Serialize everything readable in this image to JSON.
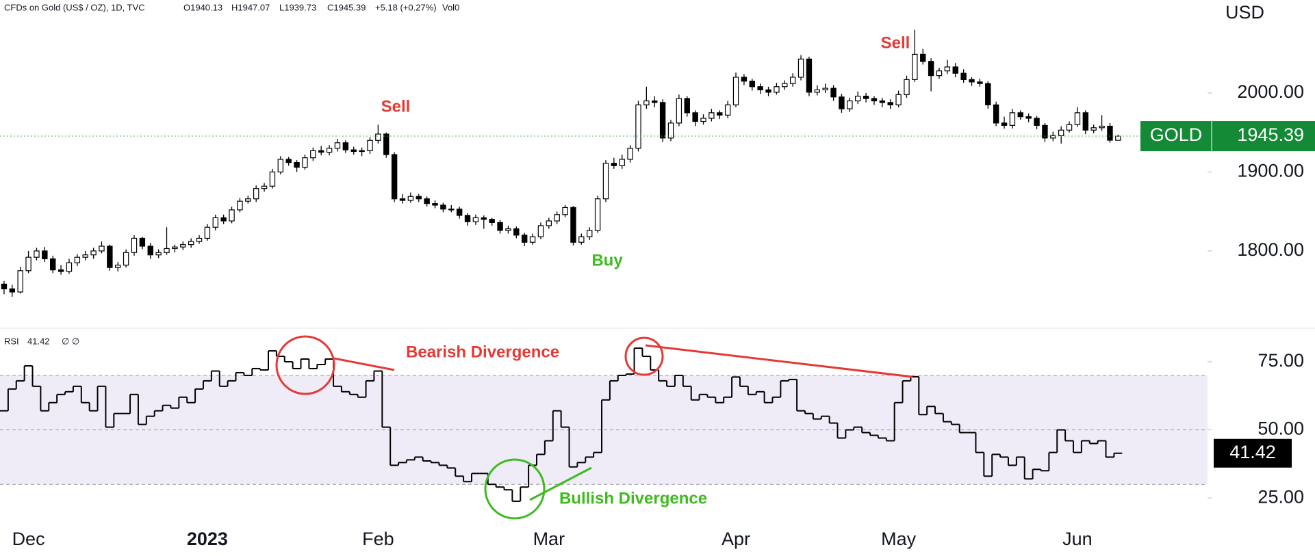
{
  "chart_data": [
    {
      "type": "candlestick",
      "header": {
        "title": "CFDs on Gold (US$ / OZ), 1D, TVC",
        "open": "O1940.13",
        "high": "H1947.07",
        "low": "L1939.73",
        "close": "C1945.39",
        "change": "+5.18 (+0.27%)",
        "volume": "Vol0"
      },
      "unit": "USD",
      "symbol": "GOLD",
      "last_label": "1945.39",
      "up_color": "#ffffff",
      "down_color": "#000000",
      "outline_color": "#000000",
      "last_line_color": "#4caf50",
      "last_box_color": "#148a36",
      "xlim": [
        -0.5,
        148
      ],
      "ylim": [
        1709,
        2097
      ],
      "yticks": [
        {
          "value": 1800,
          "label": "1800.00"
        },
        {
          "value": 1900,
          "label": "1900.00"
        },
        {
          "value": 2000,
          "label": "2000.00"
        }
      ],
      "xticks": [
        {
          "value": 3,
          "label": "Dec"
        },
        {
          "value": 25,
          "label": "2023"
        },
        {
          "value": 46,
          "label": "Feb"
        },
        {
          "value": 67,
          "label": "Mar"
        },
        {
          "value": 90,
          "label": "Apr"
        },
        {
          "value": 110,
          "label": "May"
        },
        {
          "value": 132,
          "label": "Jun"
        }
      ],
      "ohlc": [
        [
          1758,
          1762,
          1745,
          1752
        ],
        [
          1752,
          1757,
          1742,
          1748
        ],
        [
          1748,
          1780,
          1746,
          1775
        ],
        [
          1775,
          1800,
          1772,
          1792
        ],
        [
          1792,
          1804,
          1788,
          1800
        ],
        [
          1800,
          1805,
          1786,
          1790
        ],
        [
          1790,
          1794,
          1772,
          1776
        ],
        [
          1776,
          1782,
          1770,
          1774
        ],
        [
          1774,
          1790,
          1771,
          1785
        ],
        [
          1785,
          1796,
          1781,
          1792
        ],
        [
          1792,
          1800,
          1788,
          1795
        ],
        [
          1795,
          1804,
          1790,
          1800
        ],
        [
          1800,
          1812,
          1797,
          1806
        ],
        [
          1806,
          1808,
          1775,
          1779
        ],
        [
          1779,
          1786,
          1774,
          1782
        ],
        [
          1782,
          1802,
          1779,
          1798
        ],
        [
          1798,
          1820,
          1794,
          1816
        ],
        [
          1816,
          1818,
          1802,
          1806
        ],
        [
          1806,
          1810,
          1790,
          1795
        ],
        [
          1795,
          1802,
          1791,
          1798
        ],
        [
          1798,
          1830,
          1795,
          1803
        ],
        [
          1803,
          1808,
          1798,
          1805
        ],
        [
          1805,
          1812,
          1801,
          1808
        ],
        [
          1808,
          1816,
          1804,
          1812
        ],
        [
          1812,
          1820,
          1809,
          1816
        ],
        [
          1816,
          1834,
          1813,
          1830
        ],
        [
          1830,
          1846,
          1826,
          1842
        ],
        [
          1842,
          1846,
          1834,
          1838
        ],
        [
          1838,
          1856,
          1835,
          1852
        ],
        [
          1852,
          1867,
          1849,
          1863
        ],
        [
          1863,
          1870,
          1860,
          1866
        ],
        [
          1866,
          1883,
          1862,
          1879
        ],
        [
          1879,
          1886,
          1875,
          1882
        ],
        [
          1882,
          1904,
          1879,
          1900
        ],
        [
          1900,
          1920,
          1897,
          1916
        ],
        [
          1916,
          1919,
          1908,
          1912
        ],
        [
          1912,
          1915,
          1900,
          1906
        ],
        [
          1906,
          1922,
          1903,
          1918
        ],
        [
          1918,
          1931,
          1914,
          1927
        ],
        [
          1927,
          1933,
          1921,
          1925
        ],
        [
          1925,
          1934,
          1921,
          1930
        ],
        [
          1930,
          1942,
          1926,
          1937
        ],
        [
          1937,
          1940,
          1924,
          1928
        ],
        [
          1928,
          1932,
          1922,
          1926
        ],
        [
          1926,
          1931,
          1920,
          1927
        ],
        [
          1927,
          1944,
          1923,
          1940
        ],
        [
          1940,
          1960,
          1936,
          1948
        ],
        [
          1948,
          1950,
          1918,
          1922
        ],
        [
          1922,
          1925,
          1862,
          1866
        ],
        [
          1866,
          1872,
          1860,
          1864
        ],
        [
          1864,
          1874,
          1861,
          1869
        ],
        [
          1869,
          1872,
          1862,
          1866
        ],
        [
          1866,
          1869,
          1856,
          1860
        ],
        [
          1860,
          1864,
          1854,
          1858
        ],
        [
          1858,
          1861,
          1849,
          1853
        ],
        [
          1853,
          1858,
          1849,
          1853
        ],
        [
          1853,
          1856,
          1841,
          1845
        ],
        [
          1845,
          1848,
          1832,
          1837
        ],
        [
          1837,
          1846,
          1833,
          1842
        ],
        [
          1842,
          1845,
          1828,
          1840
        ],
        [
          1840,
          1842,
          1832,
          1836
        ],
        [
          1836,
          1839,
          1822,
          1826
        ],
        [
          1826,
          1832,
          1822,
          1828
        ],
        [
          1828,
          1831,
          1816,
          1820
        ],
        [
          1820,
          1823,
          1806,
          1811
        ],
        [
          1811,
          1822,
          1808,
          1818
        ],
        [
          1818,
          1836,
          1815,
          1832
        ],
        [
          1832,
          1842,
          1828,
          1838
        ],
        [
          1838,
          1850,
          1834,
          1846
        ],
        [
          1846,
          1858,
          1843,
          1855
        ],
        [
          1855,
          1857,
          1807,
          1811
        ],
        [
          1811,
          1822,
          1808,
          1818
        ],
        [
          1818,
          1830,
          1814,
          1826
        ],
        [
          1826,
          1870,
          1823,
          1866
        ],
        [
          1866,
          1915,
          1862,
          1911
        ],
        [
          1911,
          1918,
          1904,
          1908
        ],
        [
          1908,
          1922,
          1904,
          1916
        ],
        [
          1916,
          1934,
          1912,
          1930
        ],
        [
          1930,
          1990,
          1926,
          1985
        ],
        [
          1985,
          2008,
          1980,
          1990
        ],
        [
          1990,
          1996,
          1982,
          1988
        ],
        [
          1988,
          1992,
          1938,
          1943
        ],
        [
          1943,
          1966,
          1939,
          1962
        ],
        [
          1962,
          1998,
          1958,
          1993
        ],
        [
          1993,
          1996,
          1970,
          1975
        ],
        [
          1975,
          1978,
          1958,
          1964
        ],
        [
          1964,
          1973,
          1960,
          1968
        ],
        [
          1968,
          1980,
          1964,
          1975
        ],
        [
          1975,
          1978,
          1967,
          1972
        ],
        [
          1972,
          1990,
          1968,
          1985
        ],
        [
          1985,
          2026,
          1982,
          2020
        ],
        [
          2020,
          2024,
          2010,
          2015
        ],
        [
          2015,
          2018,
          2003,
          2008
        ],
        [
          2008,
          2012,
          1999,
          2004
        ],
        [
          2004,
          2008,
          1996,
          2001
        ],
        [
          2001,
          2013,
          1998,
          2008
        ],
        [
          2008,
          2016,
          2004,
          2012
        ],
        [
          2012,
          2025,
          2008,
          2020
        ],
        [
          2020,
          2048,
          2016,
          2043
        ],
        [
          2043,
          2046,
          1996,
          2001
        ],
        [
          2001,
          2010,
          1997,
          2004
        ],
        [
          2004,
          2012,
          2000,
          2006
        ],
        [
          2006,
          2010,
          1990,
          1995
        ],
        [
          1995,
          1999,
          1975,
          1980
        ],
        [
          1980,
          1994,
          1976,
          1990
        ],
        [
          1990,
          2002,
          1986,
          1996
        ],
        [
          1996,
          2000,
          1988,
          1993
        ],
        [
          1993,
          1996,
          1985,
          1990
        ],
        [
          1990,
          1994,
          1982,
          1988
        ],
        [
          1988,
          1992,
          1980,
          1985
        ],
        [
          1985,
          2003,
          1982,
          1998
        ],
        [
          1998,
          2022,
          1994,
          2017
        ],
        [
          2017,
          2080,
          2014,
          2049
        ],
        [
          2049,
          2056,
          2036,
          2040
        ],
        [
          2040,
          2044,
          2002,
          2022
        ],
        [
          2022,
          2032,
          2018,
          2028
        ],
        [
          2028,
          2042,
          2024,
          2033
        ],
        [
          2033,
          2038,
          2020,
          2025
        ],
        [
          2025,
          2030,
          2013,
          2017
        ],
        [
          2017,
          2020,
          2009,
          2014
        ],
        [
          2014,
          2018,
          2008,
          2012
        ],
        [
          2012,
          2015,
          1980,
          1985
        ],
        [
          1985,
          1989,
          1958,
          1962
        ],
        [
          1962,
          1970,
          1955,
          1959
        ],
        [
          1959,
          1980,
          1955,
          1975
        ],
        [
          1975,
          1978,
          1966,
          1970
        ],
        [
          1970,
          1974,
          1963,
          1968
        ],
        [
          1968,
          1971,
          1954,
          1959
        ],
        [
          1959,
          1962,
          1938,
          1943
        ],
        [
          1943,
          1951,
          1939,
          1946
        ],
        [
          1946,
          1958,
          1936,
          1953
        ],
        [
          1953,
          1964,
          1950,
          1960
        ],
        [
          1960,
          1982,
          1957,
          1975
        ],
        [
          1975,
          1978,
          1948,
          1953
        ],
        [
          1953,
          1960,
          1949,
          1956
        ],
        [
          1956,
          1972,
          1952,
          1958
        ],
        [
          1958,
          1962,
          1937,
          1940.21
        ],
        [
          1940.13,
          1947.07,
          1939.73,
          1945.39
        ]
      ],
      "annotations": [
        "Sell",
        "Buy",
        "Sell"
      ]
    },
    {
      "type": "line",
      "title": "RSI",
      "header_value": "41.42",
      "header_extra": "∅ ∅",
      "color": "#000000",
      "band": [
        30,
        70
      ],
      "band_color": "#efebf7",
      "last_box_color": "#000000",
      "xlim": [
        -0.5,
        148
      ],
      "ylim": [
        17,
        86.3
      ],
      "yticks": [
        {
          "value": 25,
          "label": "25.00"
        },
        {
          "value": 50,
          "label": "50.00"
        },
        {
          "value": 75,
          "label": "75.00"
        }
      ],
      "values": [
        57,
        65,
        68,
        73.5,
        66,
        57,
        60,
        63,
        64,
        66,
        60,
        57,
        66,
        51,
        56,
        56,
        63,
        52,
        55,
        57,
        59,
        58,
        62,
        60,
        65,
        68,
        71.6,
        66,
        68,
        71,
        70,
        72.5,
        72,
        79,
        77,
        75,
        72.5,
        76,
        72.5,
        74,
        76,
        66,
        64,
        63,
        62,
        68,
        71.6,
        51,
        37,
        38,
        39,
        40,
        38.6,
        38,
        37,
        36,
        33,
        31,
        34,
        34,
        30,
        29,
        28,
        23.8,
        29,
        37,
        41,
        46,
        57,
        51,
        36.4,
        38,
        40,
        41.7,
        61,
        68,
        70,
        70.5,
        80,
        77,
        72,
        68,
        66,
        70,
        66,
        61,
        63,
        62,
        60,
        62,
        69.4,
        66,
        63,
        64,
        60,
        62,
        68,
        68.5,
        57,
        56,
        54,
        55,
        52.5,
        47,
        50,
        51,
        49,
        48,
        47,
        46,
        60,
        68,
        69.5,
        55.6,
        58.6,
        56,
        53,
        52,
        49,
        49,
        41.7,
        33,
        41,
        40,
        37,
        40,
        32,
        35.5,
        35,
        41.7,
        50,
        46,
        41.7,
        46,
        45,
        46,
        40,
        41.42
      ],
      "value_labels_last": "41.42",
      "annotations": [
        "Bearish Divergence",
        "Bullish Divergence"
      ]
    }
  ]
}
